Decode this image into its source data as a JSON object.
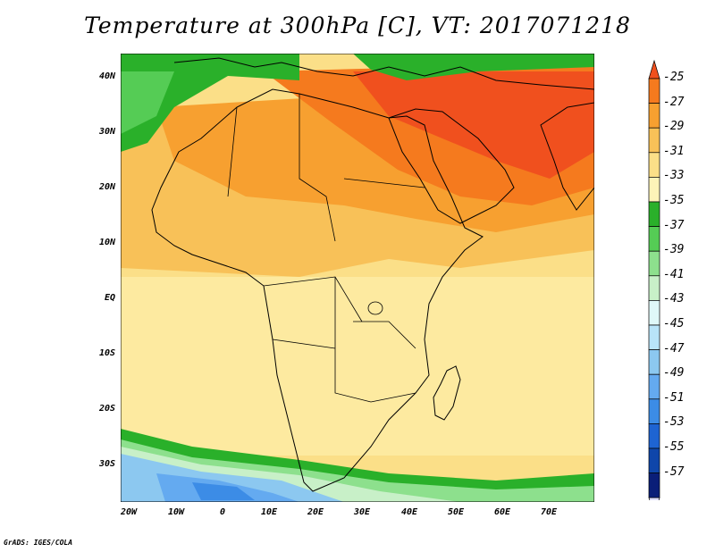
{
  "title": "Temperature at 300hPa [C], VT: 2017071218",
  "lat_labels": [
    "40N",
    "30N",
    "20N",
    "10N",
    "EQ",
    "10S",
    "20S",
    "30S"
  ],
  "lon_labels": [
    "20W",
    "10W",
    "0",
    "10E",
    "20E",
    "30E",
    "40E",
    "50E",
    "60E",
    "70E"
  ],
  "colorbar": {
    "labels": [
      "-25",
      "-27",
      "-29",
      "-31",
      "-33",
      "-35",
      "-37",
      "-39",
      "-41",
      "-43",
      "-45",
      "-47",
      "-49",
      "-51",
      "-53",
      "-55",
      "-57"
    ],
    "colors": [
      "#f0501e",
      "#f57a1e",
      "#f7a030",
      "#f8c158",
      "#fbdf88",
      "#fdf3b8",
      "#2ab02a",
      "#55cc55",
      "#8de08d",
      "#c8f0c8",
      "#dff8f8",
      "#b8e4f8",
      "#8cc8f0",
      "#64aaf0",
      "#3c8ce6",
      "#1e64d2",
      "#0f46aa",
      "#0a1e78",
      "#e0e0ff"
    ]
  },
  "credit": "GrADS: IGES/COLA"
}
